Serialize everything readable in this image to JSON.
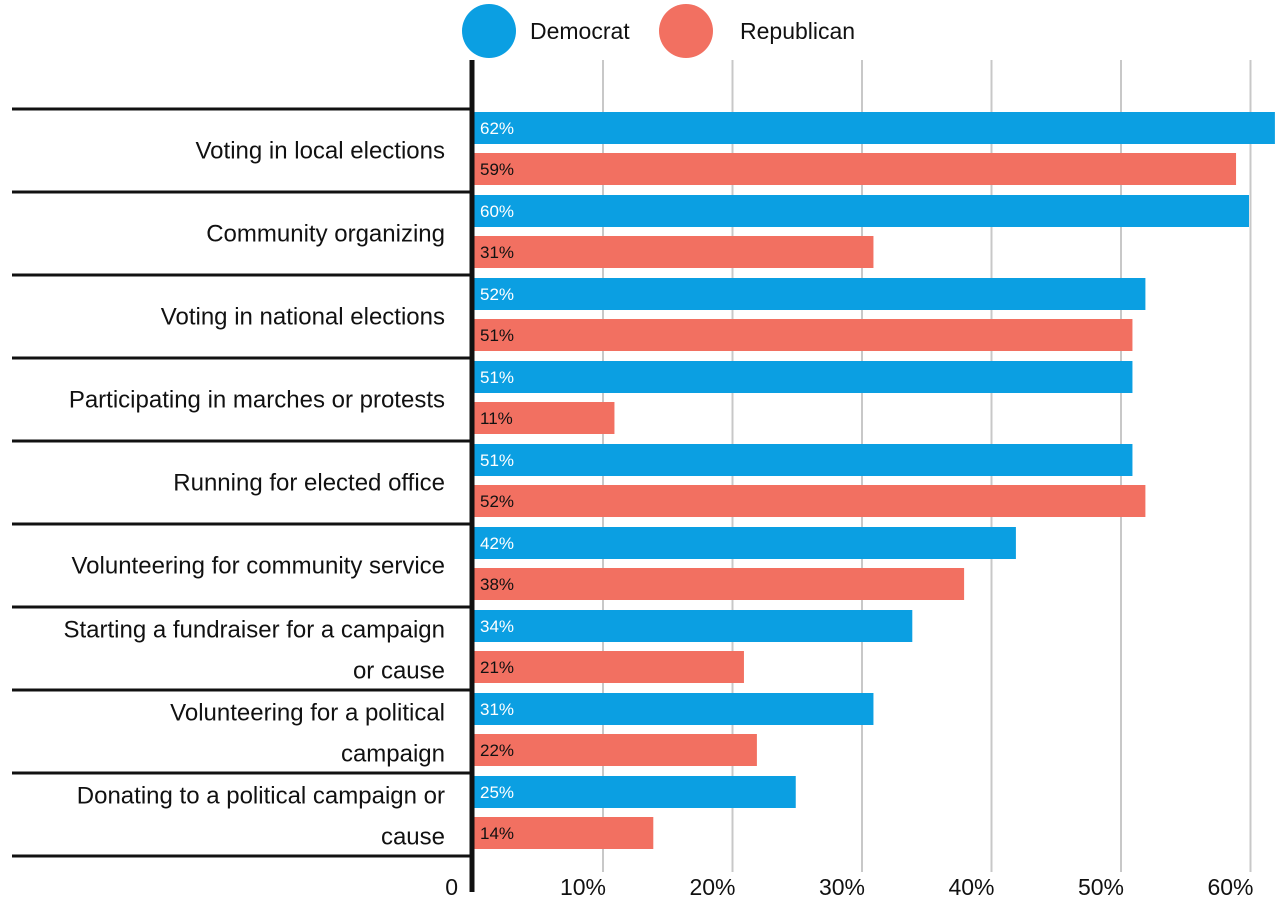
{
  "chart_data": {
    "type": "bar",
    "orientation": "horizontal",
    "categories": [
      [
        "Voting in local elections"
      ],
      [
        "Community organizing"
      ],
      [
        "Voting in national elections"
      ],
      [
        "Participating in marches or protests"
      ],
      [
        "Running for elected office"
      ],
      [
        "Volunteering for community service"
      ],
      [
        "Starting a fundraiser for a campaign",
        "or cause"
      ],
      [
        "Volunteering for a political",
        "campaign"
      ],
      [
        "Donating to a political campaign or",
        "cause"
      ]
    ],
    "series": [
      {
        "name": "Democrat",
        "color": "#0b9fe2",
        "label_color": "#ffffff",
        "values": [
          62,
          60,
          52,
          51,
          51,
          42,
          34,
          31,
          25
        ],
        "labels": [
          "62%",
          "60%",
          "52%",
          "51%",
          "51%",
          "42%",
          "34%",
          "31%",
          "25%"
        ]
      },
      {
        "name": "Republican",
        "color": "#f27061",
        "label_color": "#111111",
        "values": [
          59,
          31,
          51,
          11,
          52,
          38,
          21,
          22,
          14
        ],
        "labels": [
          "59%",
          "31%",
          "51%",
          "11%",
          "52%",
          "38%",
          "21%",
          "22%",
          "14%"
        ]
      }
    ],
    "x_ticks": [
      "0",
      "10%",
      "20%",
      "30%",
      "40%",
      "50%",
      "60%"
    ],
    "xlim": [
      0,
      62
    ],
    "grid": "vertical",
    "legend": "top-center"
  }
}
